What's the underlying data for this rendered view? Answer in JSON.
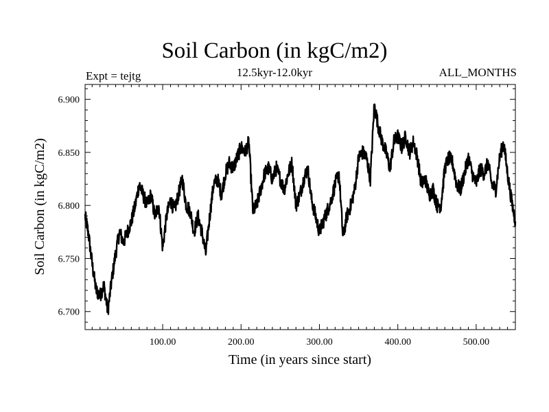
{
  "chart_data": {
    "type": "line",
    "title": "Soil Carbon (in kgC/m2)",
    "subtitle": "12.5kyr-12.0kyr",
    "left_label": "Expt = tejtg",
    "right_label": "ALL_MONTHS",
    "xlabel": "Time (in years since start)",
    "ylabel": "Soil Carbon (in kgC/m2)",
    "xlim": [
      1,
      550
    ],
    "ylim": [
      6.683,
      6.914
    ],
    "x_ticks": [
      100,
      200,
      300,
      400,
      500
    ],
    "x_tick_labels": [
      "100.00",
      "200.00",
      "300.00",
      "400.00",
      "500.00"
    ],
    "y_ticks": [
      6.7,
      6.75,
      6.8,
      6.85,
      6.9
    ],
    "y_tick_labels": [
      "6.700",
      "6.750",
      "6.800",
      "6.850",
      "6.900"
    ],
    "series": [
      {
        "name": "Soil Carbon",
        "x": [
          1,
          5,
          10,
          15,
          20,
          25,
          30,
          35,
          40,
          45,
          50,
          55,
          60,
          65,
          70,
          75,
          80,
          85,
          90,
          95,
          100,
          105,
          110,
          115,
          120,
          125,
          130,
          135,
          140,
          145,
          150,
          155,
          160,
          165,
          170,
          175,
          180,
          185,
          190,
          195,
          200,
          205,
          210,
          215,
          220,
          225,
          230,
          235,
          240,
          245,
          250,
          255,
          260,
          265,
          270,
          275,
          280,
          285,
          290,
          295,
          300,
          305,
          310,
          315,
          320,
          325,
          330,
          335,
          340,
          345,
          350,
          355,
          360,
          365,
          370,
          375,
          380,
          385,
          390,
          395,
          400,
          405,
          410,
          415,
          420,
          425,
          430,
          435,
          440,
          445,
          450,
          455,
          460,
          465,
          470,
          475,
          480,
          485,
          490,
          495,
          500,
          505,
          510,
          515,
          520,
          525,
          530,
          535,
          540,
          545,
          550
        ],
        "values": [
          6.79,
          6.775,
          6.745,
          6.72,
          6.715,
          6.725,
          6.7,
          6.73,
          6.755,
          6.775,
          6.765,
          6.775,
          6.785,
          6.8,
          6.82,
          6.81,
          6.8,
          6.81,
          6.79,
          6.8,
          6.76,
          6.79,
          6.805,
          6.795,
          6.81,
          6.825,
          6.8,
          6.795,
          6.775,
          6.79,
          6.775,
          6.755,
          6.79,
          6.82,
          6.825,
          6.81,
          6.83,
          6.84,
          6.835,
          6.845,
          6.855,
          6.85,
          6.86,
          6.795,
          6.8,
          6.815,
          6.83,
          6.835,
          6.825,
          6.835,
          6.825,
          6.815,
          6.83,
          6.84,
          6.8,
          6.81,
          6.825,
          6.835,
          6.805,
          6.79,
          6.775,
          6.785,
          6.795,
          6.805,
          6.82,
          6.83,
          6.77,
          6.79,
          6.8,
          6.815,
          6.845,
          6.85,
          6.845,
          6.825,
          6.895,
          6.875,
          6.86,
          6.85,
          6.835,
          6.86,
          6.865,
          6.855,
          6.865,
          6.85,
          6.86,
          6.845,
          6.82,
          6.825,
          6.81,
          6.815,
          6.8,
          6.8,
          6.835,
          6.845,
          6.84,
          6.82,
          6.815,
          6.83,
          6.845,
          6.83,
          6.82,
          6.835,
          6.83,
          6.84,
          6.82,
          6.815,
          6.845,
          6.86,
          6.83,
          6.805,
          6.785
        ]
      }
    ]
  }
}
